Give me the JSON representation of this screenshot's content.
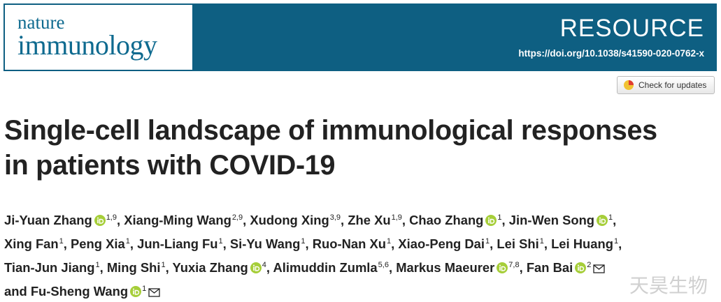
{
  "header": {
    "journal_line1": "nature",
    "journal_line2": "immunology",
    "article_type": "RESOURCE",
    "doi": "https://doi.org/10.1038/s41590-020-0762-x"
  },
  "check_updates": "Check for updates",
  "title_line1": "Single-cell landscape of immunological responses",
  "title_line2": "in patients with COVID-19",
  "separator": ",",
  "conjunction": "and",
  "authors": [
    {
      "name": "Ji-Yuan Zhang",
      "orcid": true,
      "affiliations": "1,9"
    },
    {
      "name": "Xiang-Ming Wang",
      "orcid": false,
      "affiliations": "2,9"
    },
    {
      "name": "Xudong Xing",
      "orcid": false,
      "affiliations": "3,9"
    },
    {
      "name": "Zhe Xu",
      "orcid": false,
      "affiliations": "1,9"
    },
    {
      "name": "Chao Zhang",
      "orcid": true,
      "affiliations": "1"
    },
    {
      "name": "Jin-Wen Song",
      "orcid": true,
      "affiliations": "1"
    },
    {
      "name": "Xing Fan",
      "orcid": false,
      "affiliations": "1"
    },
    {
      "name": "Peng Xia",
      "orcid": false,
      "affiliations": "1"
    },
    {
      "name": "Jun-Liang Fu",
      "orcid": false,
      "affiliations": "1"
    },
    {
      "name": "Si-Yu Wang",
      "orcid": false,
      "affiliations": "1"
    },
    {
      "name": "Ruo-Nan Xu",
      "orcid": false,
      "affiliations": "1"
    },
    {
      "name": "Xiao-Peng Dai",
      "orcid": false,
      "affiliations": "1"
    },
    {
      "name": "Lei Shi",
      "orcid": false,
      "affiliations": "1"
    },
    {
      "name": "Lei Huang",
      "orcid": false,
      "affiliations": "1"
    },
    {
      "name": "Tian-Jun Jiang",
      "orcid": false,
      "affiliations": "1"
    },
    {
      "name": "Ming Shi",
      "orcid": false,
      "affiliations": "1"
    },
    {
      "name": "Yuxia Zhang",
      "orcid": true,
      "affiliations": "4"
    },
    {
      "name": "Alimuddin Zumla",
      "orcid": false,
      "affiliations": "5,6"
    },
    {
      "name": "Markus Maeurer",
      "orcid": true,
      "affiliations": "7,8"
    },
    {
      "name": "Fan Bai",
      "orcid": true,
      "affiliations": "2",
      "corresponding": true
    },
    {
      "name": "Fu-Sheng Wang",
      "orcid": true,
      "affiliations": "1",
      "corresponding": true
    }
  ],
  "watermark": "天昊生物"
}
